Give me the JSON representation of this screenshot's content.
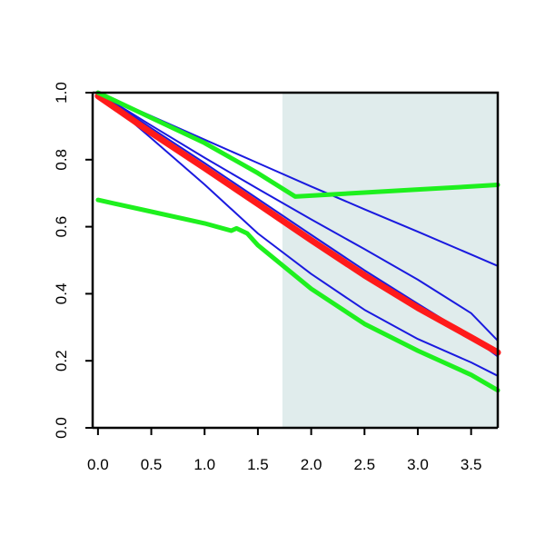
{
  "chart_data": {
    "type": "line",
    "title": "",
    "xlabel": "",
    "ylabel": "",
    "xlim": [
      -0.05,
      3.75
    ],
    "ylim": [
      0.0,
      1.0
    ],
    "x_ticks": [
      0.0,
      0.5,
      1.0,
      1.5,
      2.0,
      2.5,
      3.0,
      3.5
    ],
    "x_tick_labels": [
      "0.0",
      "0.5",
      "1.0",
      "1.5",
      "2.0",
      "2.5",
      "3.0",
      "3.5"
    ],
    "y_ticks": [
      0.0,
      0.2,
      0.4,
      0.6,
      0.8,
      1.0
    ],
    "y_tick_labels": [
      "0.0",
      "0.2",
      "0.4",
      "0.6",
      "0.8",
      "1.0"
    ],
    "grid": false,
    "legend": "none",
    "shaded_region": {
      "x_from": 1.73,
      "x_to": 3.75,
      "color": "#e0ecec"
    },
    "colors": {
      "blue": "#1a1adf",
      "red": "#ff1a1a",
      "green": "#1ef01e"
    },
    "series": [
      {
        "color": "blue",
        "x": [
          0.0,
          0.5,
          1.0,
          1.5,
          2.0,
          2.5,
          3.0,
          3.5,
          3.75
        ],
        "y": [
          1.0,
          0.93,
          0.86,
          0.79,
          0.72,
          0.652,
          0.585,
          0.517,
          0.483
        ]
      },
      {
        "color": "blue",
        "x": [
          0.0,
          0.5,
          1.0,
          1.5,
          2.0,
          2.5,
          3.0,
          3.5,
          3.75
        ],
        "y": [
          1.0,
          0.902,
          0.806,
          0.713,
          0.622,
          0.533,
          0.442,
          0.342,
          0.26
        ]
      },
      {
        "color": "blue",
        "x": [
          0.0,
          0.5,
          1.0,
          1.5,
          2.0,
          2.5,
          3.0,
          3.5,
          3.75
        ],
        "y": [
          1.0,
          0.894,
          0.79,
          0.683,
          0.576,
          0.47,
          0.37,
          0.272,
          0.213
        ]
      },
      {
        "color": "blue",
        "x": [
          0.0,
          0.5,
          1.0,
          1.5,
          2.0,
          2.5,
          3.0,
          3.5,
          3.75
        ],
        "y": [
          1.0,
          0.864,
          0.726,
          0.58,
          0.459,
          0.352,
          0.265,
          0.195,
          0.155
        ]
      },
      {
        "color": "red",
        "x": [
          0.0,
          0.5,
          1.0,
          1.5,
          2.0,
          2.5,
          3.0,
          3.5,
          3.75
        ],
        "y": [
          0.99,
          0.88,
          0.775,
          0.668,
          0.56,
          0.455,
          0.358,
          0.27,
          0.225
        ]
      },
      {
        "color": "green",
        "x": [
          0.0,
          0.5,
          1.0,
          1.5,
          1.85,
          2.5,
          3.0,
          3.5,
          3.75
        ],
        "y": [
          1.0,
          0.925,
          0.85,
          0.76,
          0.69,
          0.702,
          0.711,
          0.72,
          0.725
        ]
      },
      {
        "color": "green",
        "x": [
          0.0,
          0.5,
          1.0,
          1.25,
          1.3,
          1.4,
          1.5,
          2.0,
          2.5,
          3.0,
          3.5,
          3.75
        ],
        "y": [
          0.68,
          0.645,
          0.61,
          0.588,
          0.595,
          0.58,
          0.545,
          0.415,
          0.31,
          0.23,
          0.158,
          0.112
        ]
      }
    ]
  }
}
